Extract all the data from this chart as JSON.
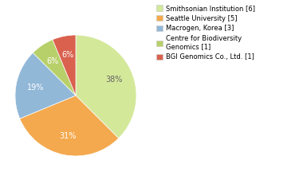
{
  "labels": [
    "Smithsonian Institution [6]",
    "Seattle University [5]",
    "Macrogen, Korea [3]",
    "Centre for Biodiversity\nGenomics [1]",
    "BGI Genomics Co., Ltd. [1]"
  ],
  "values": [
    6,
    5,
    3,
    1,
    1
  ],
  "colors": [
    "#d4e89a",
    "#f4a94e",
    "#92b8d8",
    "#b8d06a",
    "#d9614e"
  ],
  "legend_labels": [
    "Smithsonian Institution [6]",
    "Seattle University [5]",
    "Macrogen, Korea [3]",
    "Centre for Biodiversity\nGenomics [1]",
    "BGI Genomics Co., Ltd. [1]"
  ],
  "startangle": 90,
  "background_color": "#ffffff",
  "pct_colors": [
    "#666666",
    "#ffffff",
    "#ffffff",
    "#ffffff",
    "#ffffff"
  ]
}
